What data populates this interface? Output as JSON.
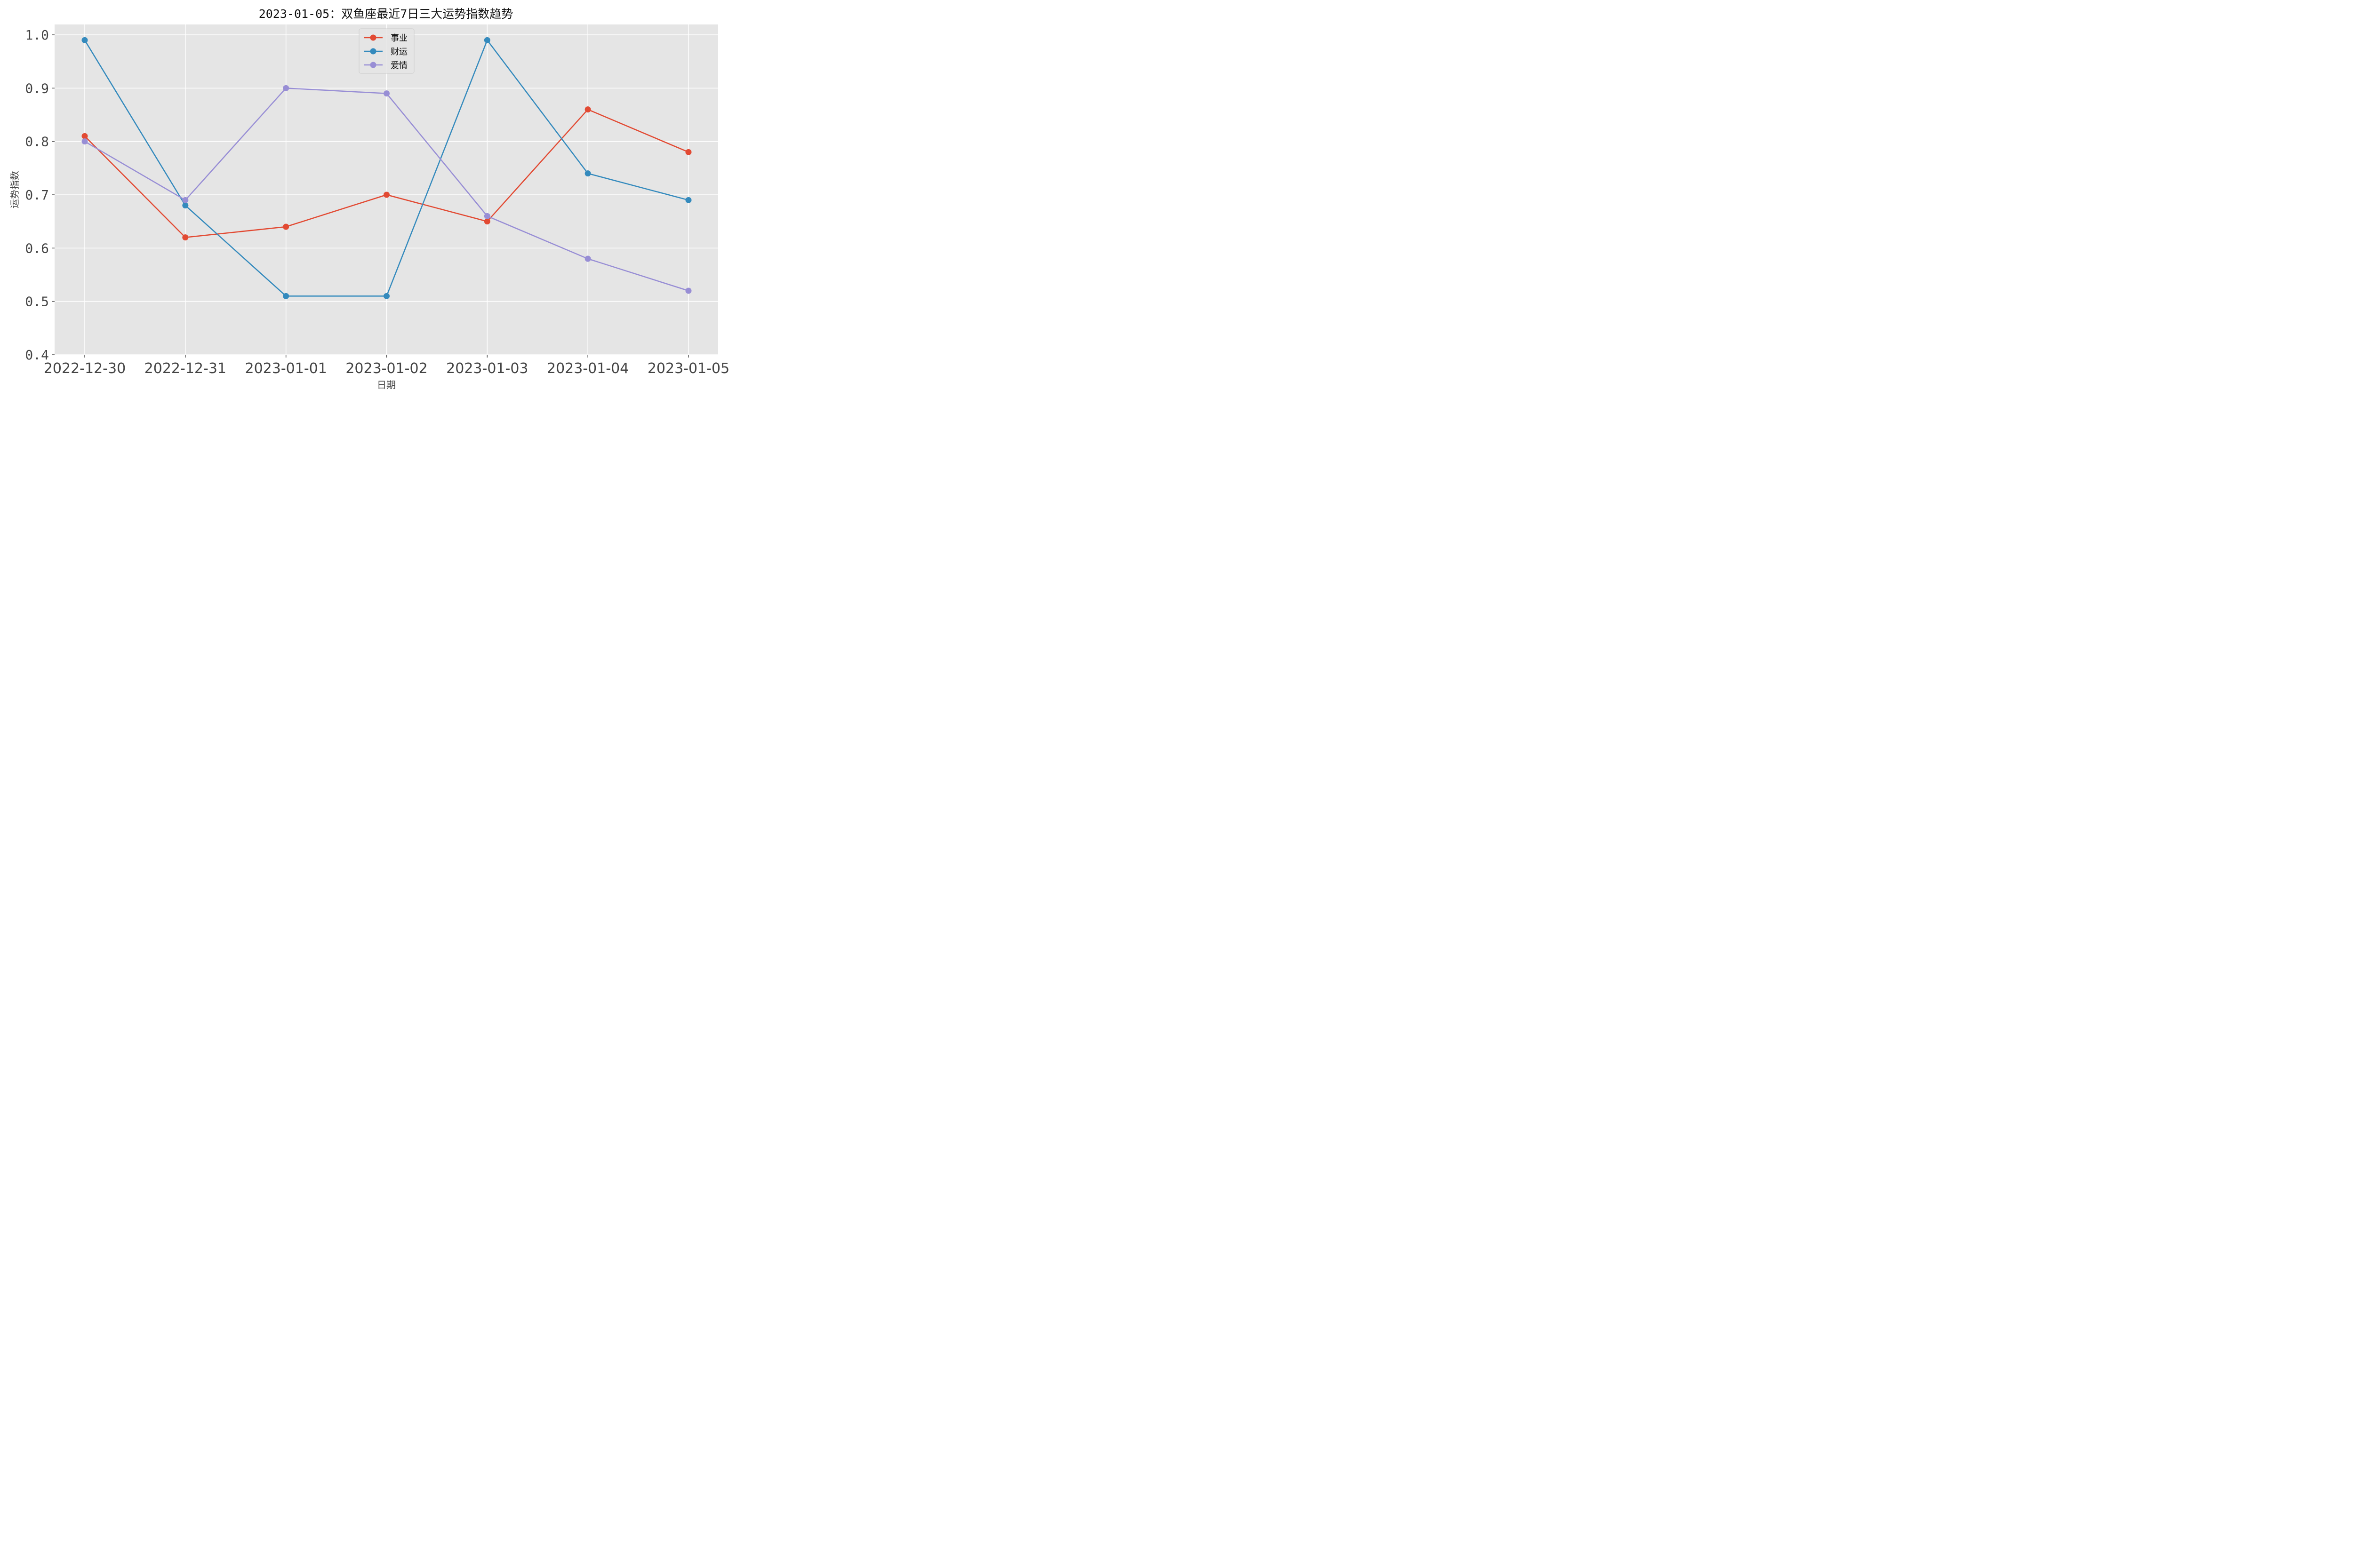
{
  "chart_data": {
    "type": "line",
    "title": "2023-01-05：双鱼座最近7日三大运势指数趋势",
    "xlabel": "日期",
    "ylabel": "运势指数",
    "categories": [
      "2022-12-30",
      "2022-12-31",
      "2023-01-01",
      "2023-01-02",
      "2023-01-03",
      "2023-01-04",
      "2023-01-05"
    ],
    "ylim": [
      0.4,
      1.0
    ],
    "yticks": [
      "0.4",
      "0.5",
      "0.6",
      "0.7",
      "0.8",
      "0.9",
      "1.0"
    ],
    "grid": true,
    "legend_position": "top-center",
    "series": [
      {
        "name": "事业",
        "color": "#E24A33",
        "values": [
          0.81,
          0.62,
          0.64,
          0.7,
          0.65,
          0.86,
          0.78
        ]
      },
      {
        "name": "财运",
        "color": "#348ABD",
        "values": [
          0.99,
          0.68,
          0.51,
          0.51,
          0.99,
          0.74,
          0.69
        ]
      },
      {
        "name": "爱情",
        "color": "#988ED5",
        "values": [
          0.8,
          0.69,
          0.9,
          0.89,
          0.66,
          0.58,
          0.52
        ]
      }
    ]
  }
}
